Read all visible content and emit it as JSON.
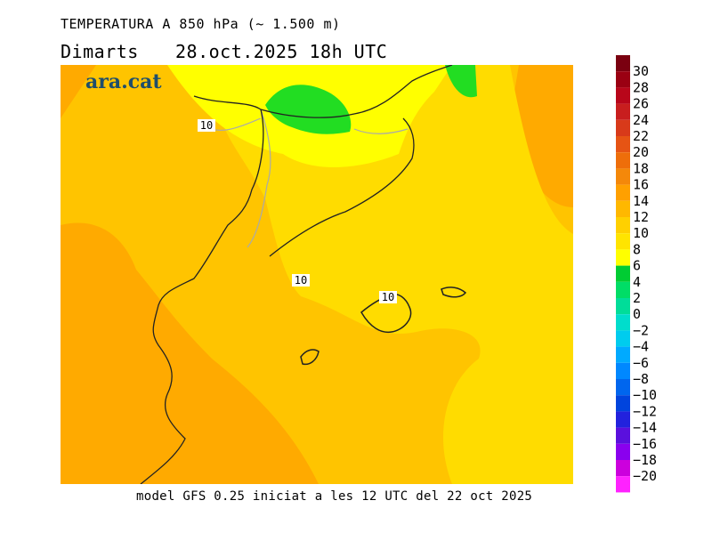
{
  "header": {
    "title": "TEMPERATURA A 850 hPa (~ 1.500 m)",
    "day": "Dimarts",
    "date": "28.oct.2025 18h UTC"
  },
  "footer": {
    "model_info": "model GFS 0.25 iniciat a les 12 UTC del 22 oct 2025"
  },
  "logo": {
    "text": "ara.cat",
    "color": "#1f4e6b"
  },
  "map": {
    "contour_labels": [
      "10",
      "10",
      "10"
    ],
    "colors": {
      "t12_14": "#ffc400",
      "t14_16": "#ffaa00",
      "t10_12": "#ffdc00",
      "t8_10": "#ffff00",
      "t6_8": "#ffff00",
      "t4_6": "#22dd22",
      "coast": "#222222",
      "border": "#aaaaaa"
    }
  },
  "legend": {
    "labels": [
      "30",
      "28",
      "26",
      "24",
      "22",
      "20",
      "18",
      "16",
      "14",
      "12",
      "10",
      "8",
      "6",
      "4",
      "2",
      "0",
      "-2",
      "-4",
      "-6",
      "-8",
      "-10",
      "-12",
      "-14",
      "-16",
      "-18",
      "-20"
    ],
    "colors": [
      "#7a0010",
      "#9a0012",
      "#b8061a",
      "#c81e1e",
      "#d83a1a",
      "#e65414",
      "#ee6e0a",
      "#f4880a",
      "#ffa000",
      "#ffb800",
      "#ffd000",
      "#ffe400",
      "#ffff00",
      "#00cc33",
      "#00dd66",
      "#00dd99",
      "#00ddcc",
      "#00ccee",
      "#00aaff",
      "#0088ff",
      "#0066ee",
      "#0044dd",
      "#2222dd",
      "#5a10dd",
      "#8a00ee",
      "#cc00dd",
      "#ff22ff"
    ]
  }
}
